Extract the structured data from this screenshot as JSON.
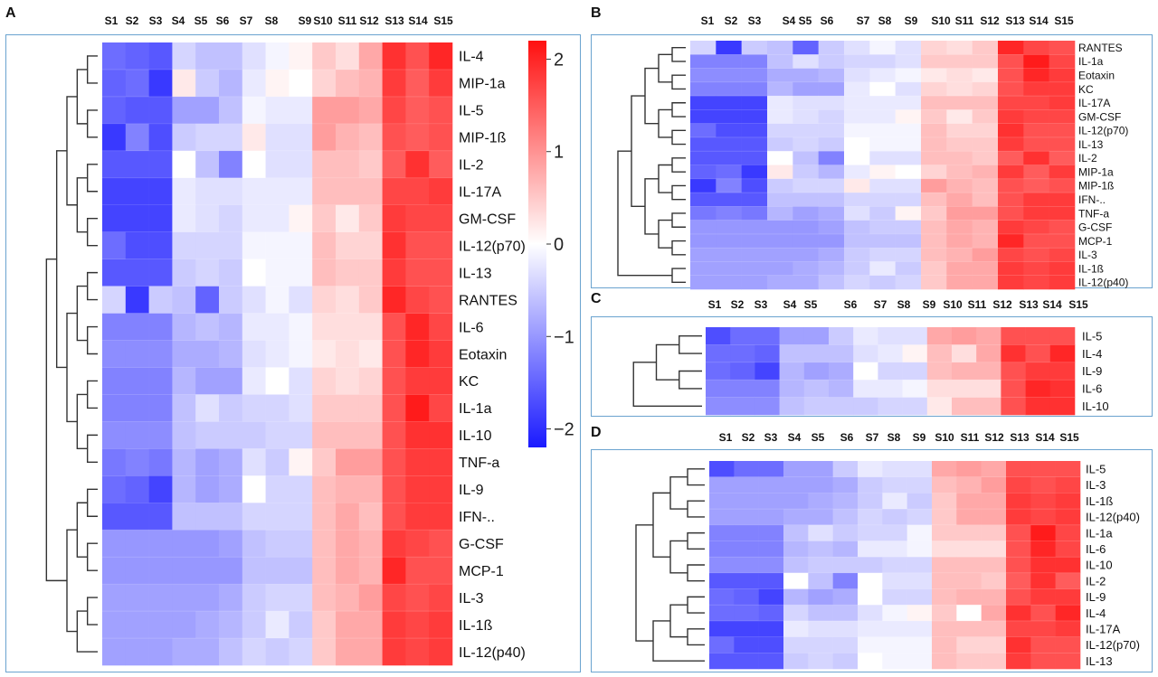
{
  "panels": [
    "A",
    "B",
    "C",
    "D"
  ],
  "colorbar": {
    "ticks": [
      "2",
      "1",
      "0",
      "−1",
      "−2"
    ],
    "tick_values": [
      2,
      1,
      0,
      -1,
      -2
    ],
    "range": [
      -2.2,
      2.2
    ],
    "low_color": "#1a1aff",
    "mid_color": "#ffffff",
    "high_color": "#ff1010"
  },
  "chart_data": [
    {
      "type": "heatmap",
      "panel": "A",
      "columns": [
        "S1",
        "S2",
        "S3",
        "S4",
        "S5",
        "S6",
        "S7",
        "S8",
        "S9",
        "S10",
        "S11",
        "S12",
        "S13",
        "S14",
        "S15"
      ],
      "rows": [
        "IL-4",
        "MIP-1a",
        "IL-5",
        "MIP-1ß",
        "IL-2",
        "IL-17A",
        "GM-CSF",
        "IL-12(p70)",
        "IL-13",
        "RANTES",
        "IL-6",
        "Eotaxin",
        "KC",
        "IL-1a",
        "IL-10",
        "TNF-a",
        "IL-9",
        "IFN-..",
        "G-CSF",
        "MCP-1",
        "IL-3",
        "IL-1ß",
        "IL-12(p40)"
      ],
      "values": [
        [
          -1.4,
          -1.5,
          -1.6,
          -0.4,
          -0.6,
          -0.6,
          -0.3,
          -0.1,
          0.1,
          0.5,
          0.3,
          0.8,
          1.9,
          1.6,
          2.0
        ],
        [
          -1.5,
          -1.4,
          -1.9,
          0.2,
          -0.5,
          -0.7,
          -0.2,
          0.1,
          0.0,
          0.4,
          0.6,
          0.7,
          1.8,
          1.5,
          1.8
        ],
        [
          -1.5,
          -1.6,
          -1.6,
          -0.9,
          -0.9,
          -0.6,
          -0.1,
          -0.2,
          -0.2,
          0.9,
          0.9,
          0.8,
          1.7,
          1.5,
          1.6
        ],
        [
          -1.9,
          -1.2,
          -1.7,
          -0.5,
          -0.4,
          -0.4,
          0.2,
          -0.3,
          -0.3,
          0.9,
          0.7,
          0.6,
          1.6,
          1.5,
          1.6
        ],
        [
          -1.6,
          -1.6,
          -1.6,
          0.0,
          -0.6,
          -1.2,
          0.0,
          -0.3,
          -0.3,
          0.6,
          0.6,
          0.5,
          1.5,
          1.9,
          1.5
        ],
        [
          -1.8,
          -1.8,
          -1.8,
          -0.2,
          -0.3,
          -0.3,
          -0.2,
          -0.2,
          -0.2,
          0.6,
          0.6,
          0.6,
          1.7,
          1.7,
          1.8
        ],
        [
          -1.8,
          -1.8,
          -1.8,
          -0.2,
          -0.3,
          -0.4,
          -0.2,
          -0.2,
          0.1,
          0.5,
          0.2,
          0.5,
          1.8,
          1.7,
          1.7
        ],
        [
          -1.4,
          -1.7,
          -1.7,
          -0.4,
          -0.4,
          -0.4,
          -0.1,
          -0.1,
          -0.1,
          0.6,
          0.4,
          0.4,
          1.9,
          1.6,
          1.6
        ],
        [
          -1.6,
          -1.6,
          -1.6,
          -0.5,
          -0.4,
          -0.5,
          0.0,
          -0.1,
          -0.1,
          0.6,
          0.5,
          0.5,
          1.8,
          1.6,
          1.6
        ],
        [
          -0.4,
          -1.9,
          -0.5,
          -0.6,
          -1.5,
          -0.5,
          -0.3,
          -0.1,
          -0.3,
          0.4,
          0.3,
          0.5,
          2.0,
          1.7,
          1.6
        ],
        [
          -1.2,
          -1.2,
          -1.2,
          -0.7,
          -0.6,
          -0.7,
          -0.2,
          -0.2,
          -0.1,
          0.3,
          0.3,
          0.3,
          1.6,
          2.0,
          1.7
        ],
        [
          -1.1,
          -1.1,
          -1.1,
          -0.8,
          -0.8,
          -0.7,
          -0.3,
          -0.2,
          -0.1,
          0.2,
          0.3,
          0.2,
          1.6,
          2.0,
          1.8
        ],
        [
          -1.2,
          -1.2,
          -1.2,
          -0.7,
          -0.9,
          -0.9,
          -0.2,
          0.0,
          -0.3,
          0.4,
          0.3,
          0.4,
          1.6,
          1.8,
          1.8
        ],
        [
          -1.2,
          -1.2,
          -1.2,
          -0.6,
          -0.3,
          -0.5,
          -0.4,
          -0.4,
          -0.3,
          0.5,
          0.5,
          0.5,
          1.6,
          2.1,
          1.7
        ],
        [
          -1.1,
          -1.1,
          -1.1,
          -0.6,
          -0.5,
          -0.5,
          -0.5,
          -0.4,
          -0.4,
          0.6,
          0.6,
          0.6,
          1.6,
          1.9,
          1.9
        ],
        [
          -1.3,
          -1.2,
          -1.3,
          -0.7,
          -0.9,
          -0.8,
          -0.3,
          -0.5,
          0.1,
          0.5,
          0.9,
          0.9,
          1.6,
          1.8,
          1.8
        ],
        [
          -1.4,
          -1.5,
          -1.8,
          -0.7,
          -0.9,
          -0.8,
          0.0,
          -0.4,
          -0.4,
          0.6,
          0.7,
          0.7,
          1.6,
          1.8,
          1.8
        ],
        [
          -1.6,
          -1.6,
          -1.6,
          -0.6,
          -0.6,
          -0.6,
          -0.4,
          -0.4,
          -0.4,
          0.6,
          0.8,
          0.6,
          1.6,
          1.8,
          1.8
        ],
        [
          -1.0,
          -1.0,
          -1.0,
          -1.0,
          -1.0,
          -0.9,
          -0.6,
          -0.5,
          -0.5,
          0.6,
          0.8,
          0.7,
          1.8,
          1.7,
          1.6
        ],
        [
          -1.0,
          -1.0,
          -1.0,
          -1.0,
          -1.0,
          -1.0,
          -0.6,
          -0.6,
          -0.6,
          0.6,
          0.8,
          0.7,
          2.0,
          1.6,
          1.6
        ],
        [
          -0.9,
          -0.9,
          -0.9,
          -0.9,
          -0.9,
          -0.8,
          -0.5,
          -0.4,
          -0.4,
          0.6,
          0.7,
          0.9,
          1.7,
          1.6,
          1.7
        ],
        [
          -0.9,
          -0.9,
          -0.9,
          -0.9,
          -0.8,
          -0.7,
          -0.5,
          -0.2,
          -0.5,
          0.5,
          0.8,
          0.8,
          1.8,
          1.7,
          1.8
        ],
        [
          -0.9,
          -0.9,
          -0.9,
          -0.8,
          -0.8,
          -0.6,
          -0.4,
          -0.5,
          -0.4,
          0.5,
          0.8,
          0.8,
          1.8,
          1.7,
          1.8
        ]
      ]
    },
    {
      "type": "heatmap",
      "panel": "B",
      "columns": [
        "S1",
        "S2",
        "S3",
        "S4",
        "S5",
        "S6",
        "S7",
        "S8",
        "S9",
        "S10",
        "S11",
        "S12",
        "S13",
        "S14",
        "S15"
      ],
      "rows": [
        "RANTES",
        "IL-1a",
        "Eotaxin",
        "KC",
        "IL-17A",
        "GM-CSF",
        "IL-12(p70)",
        "IL-13",
        "IL-2",
        "MIP-1a",
        "MIP-1ß",
        "IFN-..",
        "TNF-a",
        "G-CSF",
        "MCP-1",
        "IL-3",
        "IL-1ß",
        "IL-12(p40)"
      ],
      "values": [
        [
          -0.4,
          -1.9,
          -0.5,
          -0.6,
          -1.5,
          -0.5,
          -0.3,
          -0.1,
          -0.3,
          0.4,
          0.3,
          0.5,
          2.0,
          1.7,
          1.6
        ],
        [
          -1.2,
          -1.2,
          -1.2,
          -0.6,
          -0.3,
          -0.5,
          -0.4,
          -0.4,
          -0.3,
          0.5,
          0.5,
          0.5,
          1.6,
          2.1,
          1.7
        ],
        [
          -1.1,
          -1.1,
          -1.1,
          -0.8,
          -0.8,
          -0.7,
          -0.3,
          -0.2,
          -0.1,
          0.2,
          0.3,
          0.2,
          1.6,
          2.0,
          1.8
        ],
        [
          -1.2,
          -1.2,
          -1.2,
          -0.7,
          -0.9,
          -0.9,
          -0.2,
          0.0,
          -0.3,
          0.4,
          0.3,
          0.4,
          1.6,
          1.8,
          1.8
        ],
        [
          -1.8,
          -1.8,
          -1.8,
          -0.2,
          -0.3,
          -0.3,
          -0.2,
          -0.2,
          -0.2,
          0.6,
          0.6,
          0.6,
          1.7,
          1.7,
          1.8
        ],
        [
          -1.8,
          -1.8,
          -1.8,
          -0.2,
          -0.3,
          -0.4,
          -0.2,
          -0.2,
          0.1,
          0.5,
          0.2,
          0.5,
          1.8,
          1.7,
          1.7
        ],
        [
          -1.4,
          -1.7,
          -1.7,
          -0.4,
          -0.4,
          -0.4,
          -0.1,
          -0.1,
          -0.1,
          0.6,
          0.4,
          0.4,
          1.9,
          1.6,
          1.6
        ],
        [
          -1.6,
          -1.6,
          -1.6,
          -0.5,
          -0.4,
          -0.5,
          0.0,
          -0.1,
          -0.1,
          0.6,
          0.5,
          0.5,
          1.8,
          1.6,
          1.6
        ],
        [
          -1.6,
          -1.6,
          -1.6,
          0.0,
          -0.6,
          -1.2,
          0.0,
          -0.3,
          -0.3,
          0.6,
          0.6,
          0.5,
          1.5,
          1.9,
          1.5
        ],
        [
          -1.5,
          -1.4,
          -1.9,
          0.2,
          -0.5,
          -0.7,
          -0.2,
          0.1,
          0.0,
          0.4,
          0.6,
          0.7,
          1.8,
          1.5,
          1.8
        ],
        [
          -1.9,
          -1.2,
          -1.7,
          -0.5,
          -0.4,
          -0.4,
          0.2,
          -0.3,
          -0.3,
          0.9,
          0.7,
          0.6,
          1.6,
          1.5,
          1.6
        ],
        [
          -1.6,
          -1.6,
          -1.6,
          -0.6,
          -0.6,
          -0.6,
          -0.4,
          -0.4,
          -0.4,
          0.6,
          0.8,
          0.6,
          1.6,
          1.8,
          1.8
        ],
        [
          -1.3,
          -1.2,
          -1.3,
          -0.7,
          -0.9,
          -0.8,
          -0.3,
          -0.5,
          0.1,
          0.5,
          0.9,
          0.9,
          1.6,
          1.8,
          1.8
        ],
        [
          -1.0,
          -1.0,
          -1.0,
          -1.0,
          -1.0,
          -0.9,
          -0.6,
          -0.5,
          -0.5,
          0.6,
          0.8,
          0.7,
          1.8,
          1.7,
          1.6
        ],
        [
          -1.0,
          -1.0,
          -1.0,
          -1.0,
          -1.0,
          -1.0,
          -0.6,
          -0.6,
          -0.6,
          0.6,
          0.8,
          0.7,
          2.0,
          1.6,
          1.6
        ],
        [
          -0.9,
          -0.9,
          -0.9,
          -0.9,
          -0.9,
          -0.8,
          -0.5,
          -0.4,
          -0.4,
          0.6,
          0.7,
          0.9,
          1.7,
          1.6,
          1.7
        ],
        [
          -0.9,
          -0.9,
          -0.9,
          -0.9,
          -0.8,
          -0.7,
          -0.5,
          -0.2,
          -0.5,
          0.5,
          0.8,
          0.8,
          1.8,
          1.7,
          1.8
        ],
        [
          -0.9,
          -0.9,
          -0.9,
          -0.8,
          -0.8,
          -0.6,
          -0.4,
          -0.5,
          -0.4,
          0.5,
          0.8,
          0.8,
          1.8,
          1.7,
          1.8
        ]
      ]
    },
    {
      "type": "heatmap",
      "panel": "C",
      "columns": [
        "S1",
        "S2",
        "S3",
        "S4",
        "S5",
        "S6",
        "S7",
        "S8",
        "S9",
        "S10",
        "S11",
        "S12",
        "S13",
        "S14",
        "S15"
      ],
      "rows": [
        "IL-5",
        "IL-4",
        "IL-9",
        "IL-6",
        "IL-10"
      ],
      "values": [
        [
          -1.7,
          -1.4,
          -1.4,
          -0.9,
          -0.9,
          -0.5,
          -0.2,
          -0.3,
          -0.3,
          0.8,
          0.9,
          0.8,
          1.6,
          1.6,
          1.6
        ],
        [
          -1.4,
          -1.4,
          -1.5,
          -0.6,
          -0.6,
          -0.6,
          -0.3,
          -0.2,
          0.1,
          0.6,
          0.3,
          0.8,
          1.9,
          1.6,
          2.0
        ],
        [
          -1.4,
          -1.5,
          -1.8,
          -0.7,
          -0.9,
          -0.8,
          0.0,
          -0.4,
          -0.4,
          0.6,
          0.7,
          0.7,
          1.6,
          1.8,
          1.8
        ],
        [
          -1.2,
          -1.2,
          -1.2,
          -0.7,
          -0.6,
          -0.7,
          -0.2,
          -0.2,
          -0.1,
          0.3,
          0.3,
          0.3,
          1.6,
          2.0,
          1.9
        ],
        [
          -1.1,
          -1.1,
          -1.1,
          -0.6,
          -0.5,
          -0.5,
          -0.5,
          -0.4,
          -0.4,
          0.2,
          0.6,
          0.6,
          1.6,
          1.9,
          1.9
        ]
      ]
    },
    {
      "type": "heatmap",
      "panel": "D",
      "columns": [
        "S1",
        "S2",
        "S3",
        "S4",
        "S5",
        "S6",
        "S7",
        "S8",
        "S9",
        "S10",
        "S11",
        "S12",
        "S13",
        "S14",
        "S15"
      ],
      "rows": [
        "IL-5",
        "IL-3",
        "IL-1ß",
        "IL-12(p40)",
        "IL-1a",
        "IL-6",
        "IL-10",
        "IL-2",
        "IL-9",
        "IL-4",
        "IL-17A",
        "IL-12(p70)",
        "IL-13"
      ],
      "values": [
        [
          -1.7,
          -1.4,
          -1.4,
          -0.9,
          -0.9,
          -0.5,
          -0.2,
          -0.3,
          -0.3,
          0.8,
          0.9,
          0.8,
          1.6,
          1.6,
          1.6
        ],
        [
          -0.9,
          -0.9,
          -0.9,
          -0.9,
          -0.9,
          -0.8,
          -0.5,
          -0.4,
          -0.4,
          0.6,
          0.7,
          0.9,
          1.7,
          1.6,
          1.7
        ],
        [
          -0.9,
          -0.9,
          -0.9,
          -0.9,
          -0.8,
          -0.7,
          -0.5,
          -0.2,
          -0.5,
          0.5,
          0.8,
          0.8,
          1.8,
          1.7,
          1.8
        ],
        [
          -0.9,
          -0.9,
          -0.9,
          -0.8,
          -0.8,
          -0.6,
          -0.4,
          -0.5,
          -0.4,
          0.5,
          0.8,
          0.8,
          1.8,
          1.7,
          1.8
        ],
        [
          -1.2,
          -1.2,
          -1.2,
          -0.6,
          -0.3,
          -0.5,
          -0.4,
          -0.4,
          -0.1,
          0.5,
          0.5,
          0.5,
          1.6,
          2.1,
          1.7
        ],
        [
          -1.2,
          -1.2,
          -1.2,
          -0.7,
          -0.6,
          -0.7,
          -0.2,
          -0.2,
          -0.1,
          0.3,
          0.3,
          0.3,
          1.6,
          2.0,
          1.7
        ],
        [
          -1.1,
          -1.1,
          -1.1,
          -0.6,
          -0.5,
          -0.5,
          -0.5,
          -0.4,
          -0.4,
          0.6,
          0.6,
          0.6,
          1.6,
          1.9,
          1.9
        ],
        [
          -1.6,
          -1.6,
          -1.6,
          0.0,
          -0.6,
          -1.2,
          0.0,
          -0.3,
          -0.3,
          0.6,
          0.6,
          0.5,
          1.5,
          1.9,
          1.5
        ],
        [
          -1.4,
          -1.5,
          -1.8,
          -0.7,
          -0.9,
          -0.8,
          0.0,
          -0.4,
          -0.4,
          0.6,
          0.7,
          0.7,
          1.6,
          1.8,
          1.8
        ],
        [
          -1.4,
          -1.4,
          -1.5,
          -0.4,
          -0.6,
          -0.6,
          -0.3,
          -0.1,
          0.1,
          0.5,
          0.0,
          0.8,
          1.9,
          1.6,
          2.0
        ],
        [
          -1.8,
          -1.8,
          -1.8,
          -0.2,
          -0.3,
          -0.3,
          -0.2,
          -0.2,
          -0.2,
          0.6,
          0.6,
          0.6,
          1.7,
          1.7,
          1.8
        ],
        [
          -1.4,
          -1.7,
          -1.7,
          -0.4,
          -0.4,
          -0.4,
          -0.1,
          -0.1,
          -0.1,
          0.6,
          0.4,
          0.4,
          1.9,
          1.6,
          1.6
        ],
        [
          -1.6,
          -1.6,
          -1.6,
          -0.5,
          -0.4,
          -0.5,
          0.0,
          -0.1,
          -0.1,
          0.6,
          0.5,
          0.5,
          1.8,
          1.6,
          1.6
        ]
      ]
    }
  ]
}
